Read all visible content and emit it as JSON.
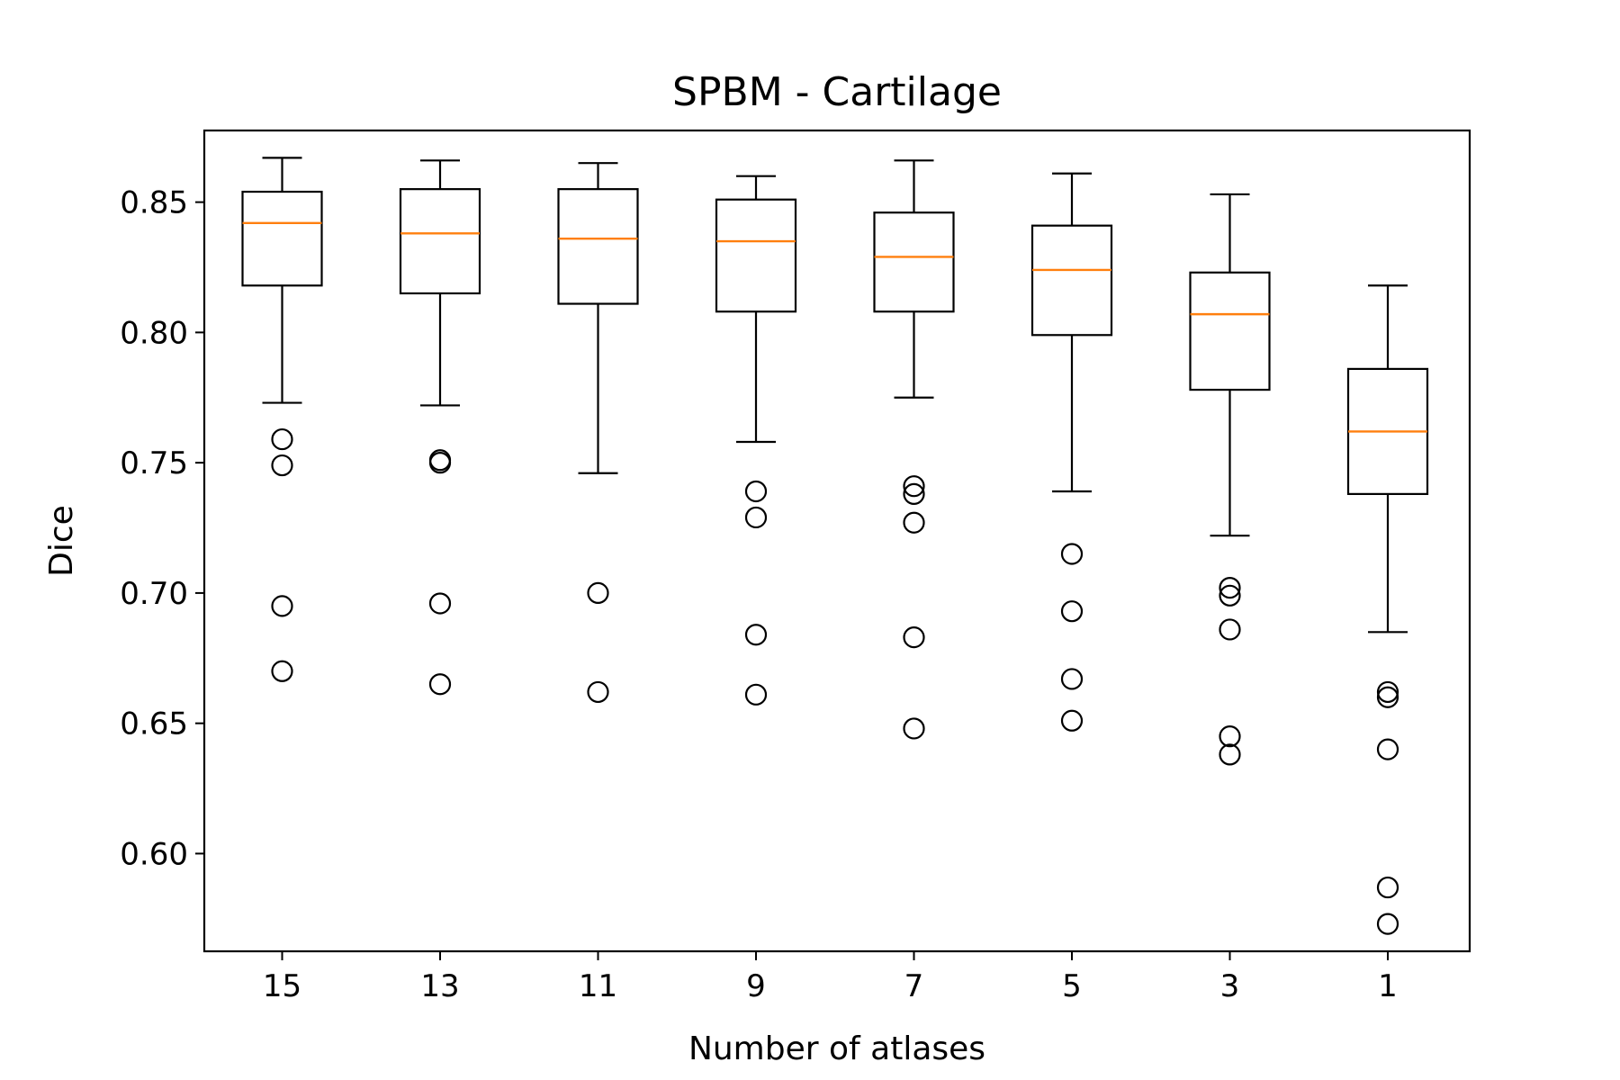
{
  "chart_data": {
    "type": "box",
    "title": "SPBM - Cartilage",
    "xlabel": "Number of atlases",
    "ylabel": "Dice",
    "ylim": [
      0.5625,
      0.8775
    ],
    "yticks": [
      "0.60",
      "0.65",
      "0.70",
      "0.75",
      "0.80",
      "0.85"
    ],
    "ytick_values": [
      0.6,
      0.65,
      0.7,
      0.75,
      0.8,
      0.85
    ],
    "categories": [
      "15",
      "13",
      "11",
      "9",
      "7",
      "5",
      "3",
      "1"
    ],
    "grid": false,
    "legend": "none",
    "colors": {
      "box": "#000000",
      "median": "#ff7f0e",
      "flier": "#000000",
      "background": "#ffffff"
    },
    "boxes": [
      {
        "category": "15",
        "whisker_low": 0.773,
        "q1": 0.818,
        "median": 0.842,
        "q3": 0.854,
        "whisker_high": 0.867,
        "fliers": [
          0.759,
          0.749,
          0.695,
          0.67
        ]
      },
      {
        "category": "13",
        "whisker_low": 0.772,
        "q1": 0.815,
        "median": 0.838,
        "q3": 0.855,
        "whisker_high": 0.866,
        "fliers": [
          0.751,
          0.75,
          0.696,
          0.665
        ]
      },
      {
        "category": "11",
        "whisker_low": 0.746,
        "q1": 0.811,
        "median": 0.836,
        "q3": 0.855,
        "whisker_high": 0.865,
        "fliers": [
          0.7,
          0.662
        ]
      },
      {
        "category": "9",
        "whisker_low": 0.758,
        "q1": 0.808,
        "median": 0.835,
        "q3": 0.851,
        "whisker_high": 0.86,
        "fliers": [
          0.739,
          0.729,
          0.684,
          0.661
        ]
      },
      {
        "category": "7",
        "whisker_low": 0.775,
        "q1": 0.808,
        "median": 0.829,
        "q3": 0.846,
        "whisker_high": 0.866,
        "fliers": [
          0.741,
          0.738,
          0.727,
          0.683,
          0.648
        ]
      },
      {
        "category": "5",
        "whisker_low": 0.739,
        "q1": 0.799,
        "median": 0.824,
        "q3": 0.841,
        "whisker_high": 0.861,
        "fliers": [
          0.715,
          0.693,
          0.667,
          0.651
        ]
      },
      {
        "category": "3",
        "whisker_low": 0.722,
        "q1": 0.778,
        "median": 0.807,
        "q3": 0.823,
        "whisker_high": 0.853,
        "fliers": [
          0.702,
          0.699,
          0.686,
          0.645,
          0.638
        ]
      },
      {
        "category": "1",
        "whisker_low": 0.685,
        "q1": 0.738,
        "median": 0.762,
        "q3": 0.786,
        "whisker_high": 0.818,
        "fliers": [
          0.662,
          0.66,
          0.64,
          0.587,
          0.573
        ]
      }
    ]
  }
}
